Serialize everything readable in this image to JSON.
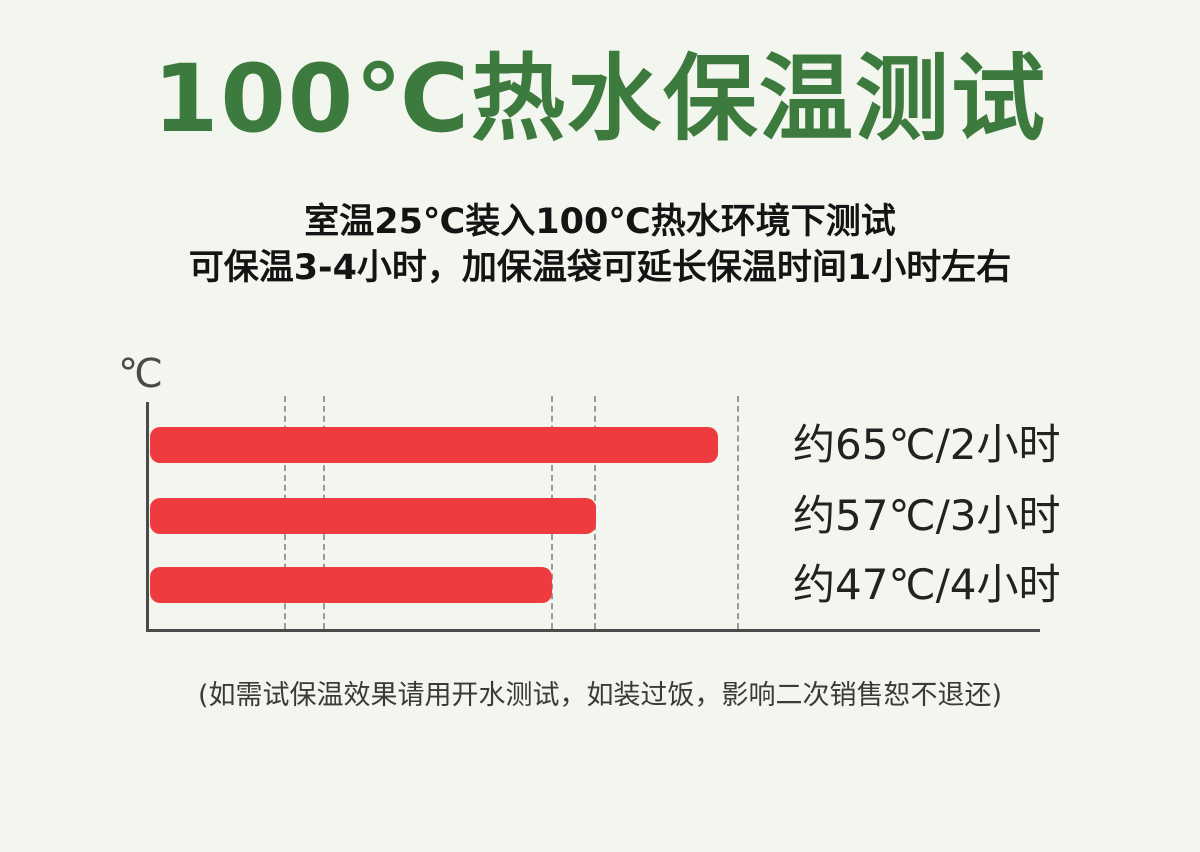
{
  "page": {
    "background": "#f2f6ee"
  },
  "header": {
    "title": "100℃热水保温测试",
    "title_color": "#3d7a3e",
    "subtitle_line1": "室温25℃装入100℃热水环境下测试",
    "subtitle_line2": "可保温3-4小时，加保温袋可延长保温时间1小时左右"
  },
  "chart_data": {
    "type": "bar",
    "orientation": "horizontal",
    "title": "",
    "unit_label": "℃",
    "categories": [
      "2小时",
      "3小时",
      "4小时"
    ],
    "values": [
      65,
      57,
      47
    ],
    "bar_labels": [
      "约65℃/2小时",
      "约57℃/3小时",
      "约47℃/4小时"
    ],
    "bar_color": "#ee3b40",
    "axis_color": "#4a4a4a",
    "bar_lengths_pct": [
      63.8,
      50.1,
      45.1
    ],
    "gridlines": {
      "style": "dashed",
      "color": "#9a9a9a",
      "positions_pct": [
        15.1,
        19.5,
        45.1,
        49.9,
        66.0
      ]
    },
    "legend": "none",
    "grid": "vertical-dashed-only"
  },
  "footer": {
    "note": "(如需试保温效果请用开水测试，如装过饭，影响二次销售恕不退还)"
  }
}
